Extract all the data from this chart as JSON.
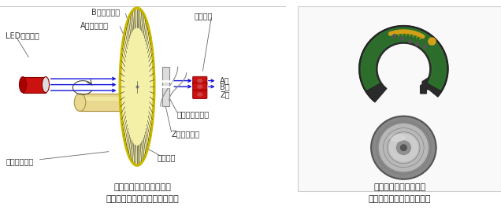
{
  "bg_color": "#ffffff",
  "title_left_line1": "光学式インクリメンタル",
  "title_left_line2": "エンコーダー（透過型）の構造",
  "title_right_line1": "検出部と回転ディスク",
  "title_right_line2": "ハイデンハイン株式会社製",
  "labels": {
    "led": "LED（光源）",
    "b_slit": "B相スリット",
    "a_slit": "A相スリット",
    "sensor": "受光素子",
    "a_phase": "A相",
    "b_phase": "B相",
    "z_phase": "Z相",
    "fixed_slit": "固定スリット板",
    "z_slit": "Z相スリット",
    "slit": "スリット",
    "disk": "回転ディスク"
  },
  "disk_color": "#f5f0a8",
  "disk_edge_color": "#b8a000",
  "disk_stripe_color": "#2a2a2a",
  "disk_rim_color": "#c8b800",
  "led_body_color": "#cc1111",
  "led_tip_color": "#eeeeee",
  "shaft_color": "#e8d890",
  "shaft_top_color": "#f0e8a0",
  "shaft_dark": "#b09040",
  "arrow_color": "#1111dd",
  "sensor_color": "#cc1111",
  "annotation_color": "#333333",
  "line_color": "#666666",
  "slit_plate_color": "#dddddd",
  "font_size_label": 7.0,
  "font_size_title": 8.0,
  "divider_color": "#aaaaaa"
}
